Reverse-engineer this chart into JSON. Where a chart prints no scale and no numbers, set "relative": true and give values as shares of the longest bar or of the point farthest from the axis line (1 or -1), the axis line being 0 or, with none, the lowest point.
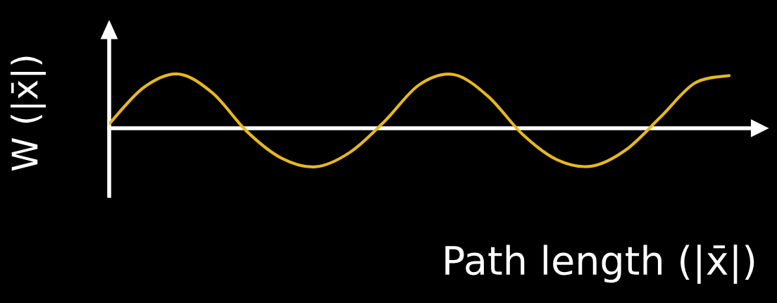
{
  "chart_data": {
    "type": "line",
    "relative": true,
    "xlabel": "Path length (|x̄|)",
    "ylabel": "W (|x̄|)",
    "categories": [
      null,
      null,
      null,
      null,
      null,
      null,
      null,
      null,
      null,
      null,
      null,
      null,
      null,
      null,
      null,
      null,
      null,
      null,
      null
    ],
    "series": [
      {
        "color": "#e6b820",
        "values": [
          0.08,
          0.75,
          1,
          0.65,
          -0.06,
          -0.55,
          -0.71,
          -0.44,
          0.13,
          0.8,
          0.99,
          0.59,
          -0.11,
          -0.58,
          -0.7,
          -0.4,
          0.2,
          0.83,
          0.97
        ]
      }
    ]
  }
}
